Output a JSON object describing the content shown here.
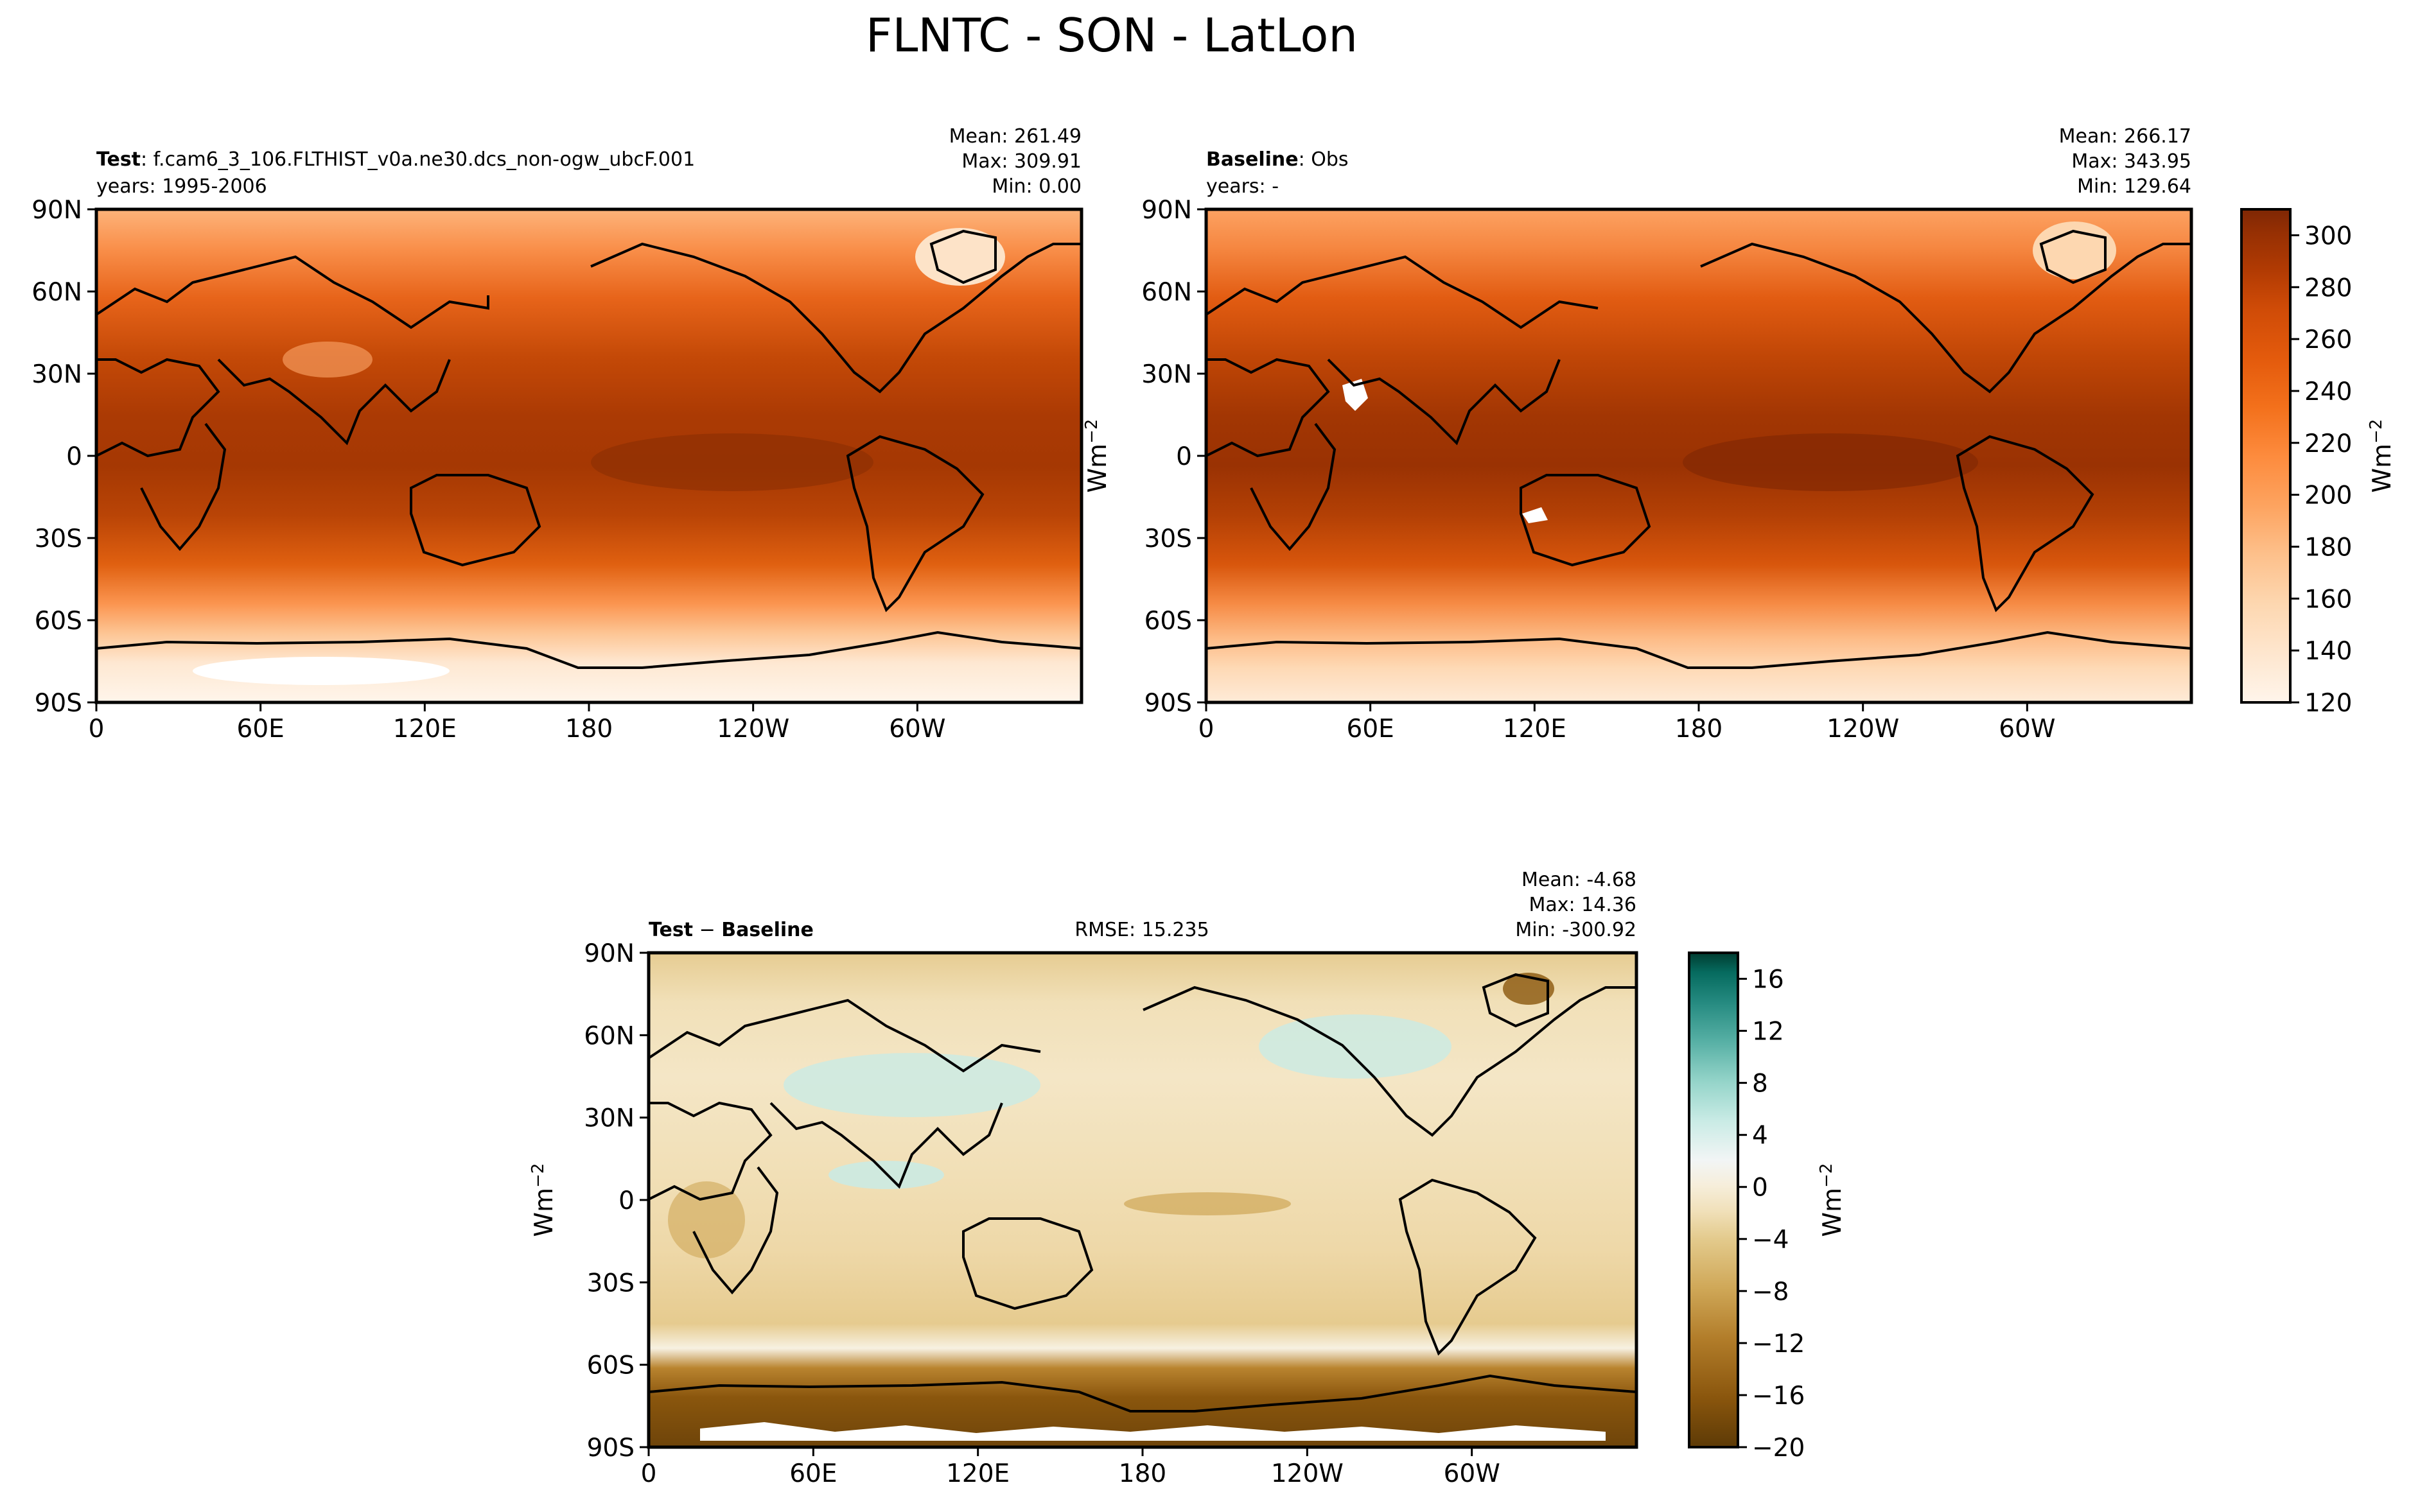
{
  "figure": {
    "title": "FLNTC - SON - LatLon"
  },
  "colors": {
    "orange_scale": [
      "#fff5eb",
      "#fee6ce",
      "#fdd7b0",
      "#fdc08b",
      "#fda35f",
      "#fd8b3d",
      "#f3701b",
      "#e35a0c",
      "#cf4b07",
      "#b03a03",
      "#973003",
      "#7f2704"
    ],
    "diverging_scale": [
      "#5d3a06",
      "#8a560d",
      "#b27d2a",
      "#cfa757",
      "#e3ca8c",
      "#f1e1bb",
      "#f6eedb",
      "#f2f5f5",
      "#c9ebe5",
      "#94d4c9",
      "#57b0a5",
      "#258a80",
      "#066b5f",
      "#003c30"
    ]
  },
  "panels": {
    "test": {
      "label_bold": "Test",
      "label_rest": ": f.cam6_3_106.FLTHIST_v0a.ne30.dcs_non-ogw_ubcF.001",
      "years": "years: 1995-2006",
      "mean": "Mean: 261.49",
      "max": "Max: 309.91",
      "min": "Min:  0.00"
    },
    "baseline": {
      "label_bold": "Baseline",
      "label_rest": ": Obs",
      "years": "years: -",
      "mean": "Mean: 266.17",
      "max": "Max: 343.95",
      "min": "Min: 129.64"
    },
    "diff": {
      "label_bold": "Test",
      "label_mid": " − ",
      "label_bold2": "Baseline",
      "rmse": "RMSE: 15.235",
      "mean": "Mean: -4.68",
      "max": "Max: 14.36",
      "min": "Min: -300.92"
    }
  },
  "unit_label": "Wm",
  "unit_exp": "−2",
  "chart_data": [
    {
      "type": "heatmap",
      "name_ref": "test",
      "x_ticks": [
        "0",
        "60E",
        "120E",
        "180",
        "120W",
        "60W"
      ],
      "y_ticks": [
        "90N",
        "60N",
        "30N",
        "0",
        "30S",
        "60S",
        "90S"
      ],
      "colorbar_ticks": [],
      "zlim": [
        120,
        310
      ]
    },
    {
      "type": "heatmap",
      "name_ref": "baseline",
      "x_ticks": [
        "0",
        "60E",
        "120E",
        "180",
        "120W",
        "60W"
      ],
      "y_ticks": [
        "90N",
        "60N",
        "30N",
        "0",
        "30S",
        "60S",
        "90S"
      ],
      "colorbar_ticks": [
        "120",
        "140",
        "160",
        "180",
        "200",
        "220",
        "240",
        "260",
        "280",
        "300"
      ],
      "zlim": [
        120,
        310
      ]
    },
    {
      "type": "heatmap",
      "name_ref": "diff",
      "x_ticks": [
        "0",
        "60E",
        "120E",
        "180",
        "120W",
        "60W"
      ],
      "y_ticks": [
        "90N",
        "60N",
        "30N",
        "0",
        "30S",
        "60S",
        "90S"
      ],
      "colorbar_ticks": [
        "−20",
        "−16",
        "−12",
        "−8",
        "−4",
        "0",
        "4",
        "8",
        "12",
        "16"
      ],
      "zlim": [
        -20,
        18
      ]
    }
  ]
}
